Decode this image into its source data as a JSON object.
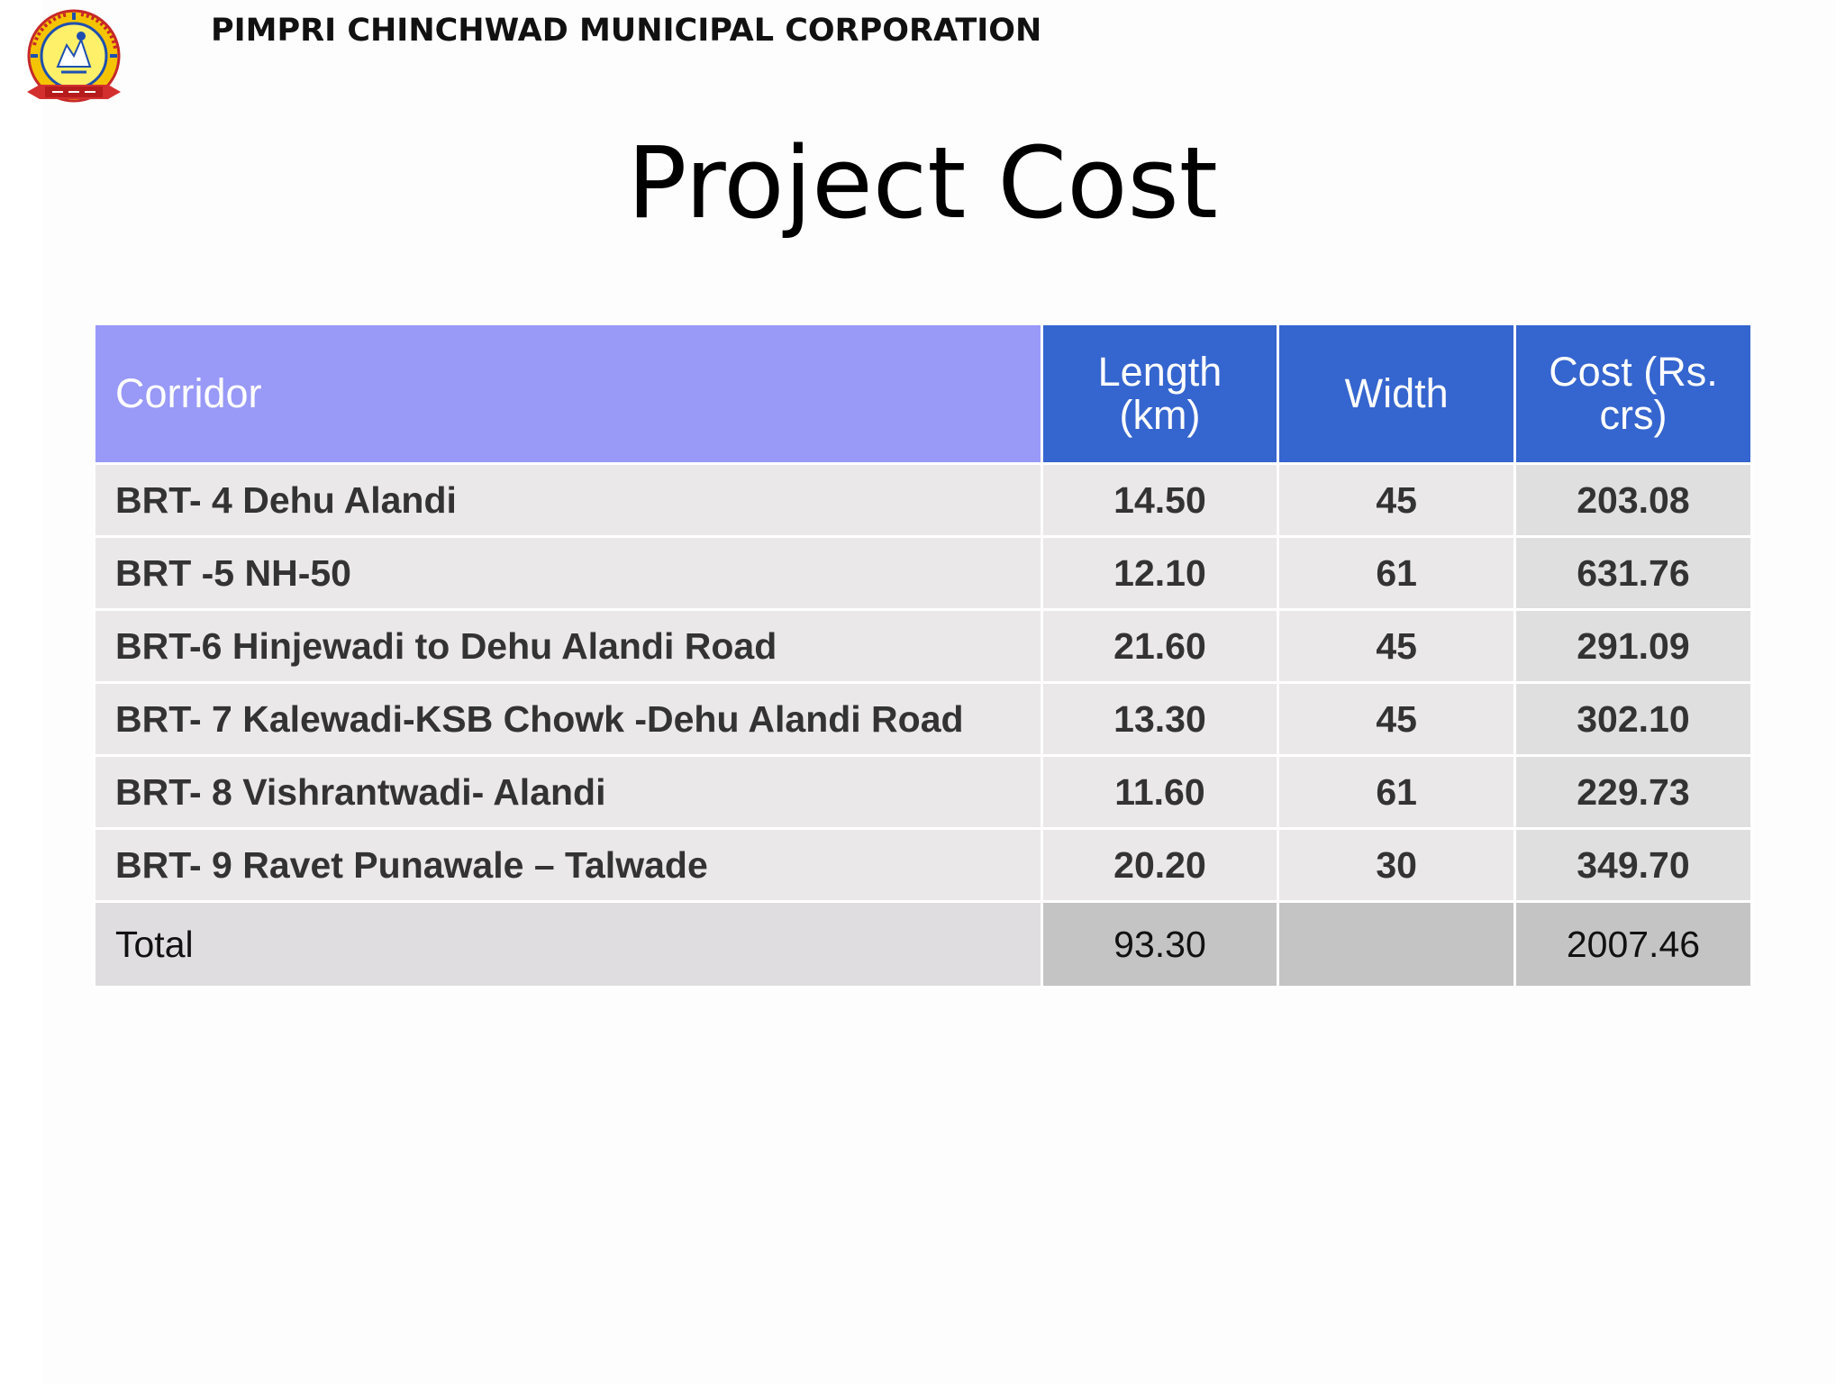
{
  "header": {
    "organization": "PIMPRI CHINCHWAD MUNICIPAL CORPORATION",
    "logo_icon": "pcmc-emblem-icon",
    "logo_ring_text": "पिंपरी चिंचवड महानगरपालिका 411018"
  },
  "title": "Project Cost",
  "table": {
    "columns": {
      "corridor": "Corridor",
      "length_line1": "Length",
      "length_line2": "(km)",
      "width": "Width",
      "cost_line1": "Cost  (Rs.",
      "cost_line2": "crs)"
    },
    "rows": [
      {
        "corridor": "BRT- 4 Dehu Alandi",
        "length": "14.50",
        "width": "45",
        "cost": "203.08"
      },
      {
        "corridor": "BRT -5 NH-50",
        "length": "12.10",
        "width": "61",
        "cost": "631.76"
      },
      {
        "corridor": "BRT-6 Hinjewadi to Dehu Alandi Road",
        "length": "21.60",
        "width": "45",
        "cost": "291.09"
      },
      {
        "corridor": "BRT- 7 Kalewadi-KSB Chowk -Dehu Alandi Road",
        "length": "13.30",
        "width": "45",
        "cost": "302.10"
      },
      {
        "corridor": "BRT- 8 Vishrantwadi- Alandi",
        "length": "11.60",
        "width": "61",
        "cost": "229.73"
      },
      {
        "corridor": "BRT- 9 Ravet Punawale – Talwade",
        "length": "20.20",
        "width": "30",
        "cost": "349.70"
      }
    ],
    "total": {
      "label": "Total",
      "length": "93.30",
      "width": "",
      "cost": "2007.46"
    }
  },
  "colors": {
    "corridor_header": "#9999f8",
    "numeric_header": "#3565cf",
    "row_fill": "#eae8e9",
    "total_fill": "#c5c4c5"
  }
}
